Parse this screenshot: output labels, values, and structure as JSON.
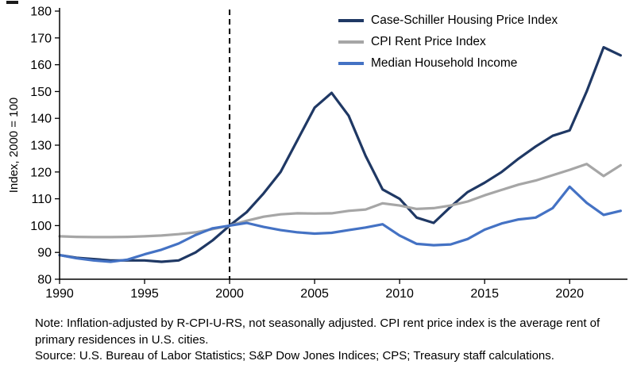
{
  "chart_data": {
    "type": "line",
    "title": "",
    "ylabel": "Index, 2000 = 100",
    "xlabel": "",
    "ylim": [
      80,
      180
    ],
    "ytick_step": 10,
    "xlim": [
      1990,
      2023.4
    ],
    "xticks": [
      1990,
      1995,
      2000,
      2005,
      2010,
      2015,
      2020
    ],
    "vline_x": 2000,
    "grid": false,
    "legend_position": "top-right-inside",
    "x": [
      1990,
      1991,
      1992,
      1993,
      1994,
      1995,
      1996,
      1997,
      1998,
      1999,
      2000,
      2001,
      2002,
      2003,
      2004,
      2005,
      2006,
      2007,
      2008,
      2009,
      2010,
      2011,
      2012,
      2013,
      2014,
      2015,
      2016,
      2017,
      2018,
      2019,
      2020,
      2021,
      2022,
      2023
    ],
    "series": [
      {
        "name": "Case-Schiller Housing Price Index",
        "color": "#1F3864",
        "values": [
          89,
          88,
          87.5,
          87,
          87,
          87,
          86.5,
          87,
          90,
          94.5,
          100,
          105,
          112,
          120,
          132,
          144,
          149.5,
          141,
          126,
          113.5,
          110,
          103,
          101,
          107,
          112.5,
          116,
          120,
          125,
          129.5,
          133.5,
          135.5,
          150,
          166.5,
          163.5
        ]
      },
      {
        "name": "CPI Rent Price Index",
        "color": "#A6A6A6",
        "values": [
          96,
          95.8,
          95.7,
          95.7,
          95.8,
          96,
          96.3,
          96.8,
          97.5,
          98.7,
          100,
          101.8,
          103.3,
          104.2,
          104.6,
          104.5,
          104.6,
          105.5,
          106,
          108.3,
          107.5,
          106.2,
          106.5,
          107.5,
          109,
          111.3,
          113.3,
          115.3,
          116.8,
          118.8,
          120.8,
          123,
          118.5,
          122.5
        ]
      },
      {
        "name": "Median Household Income",
        "color": "#4472C4",
        "values": [
          89,
          87.8,
          87,
          86.5,
          87.3,
          89.3,
          91,
          93.3,
          96.5,
          99,
          100,
          101,
          99.5,
          98.3,
          97.5,
          97,
          97.3,
          98.3,
          99.3,
          100.5,
          96.3,
          93.2,
          92.7,
          93,
          95,
          98.5,
          100.8,
          102.3,
          103,
          106.5,
          114.5,
          108.5,
          104,
          105.5
        ]
      }
    ]
  },
  "notes": {
    "note": "Note: Inflation-adjusted by R-CPI-U-RS, not seasonally adjusted. CPI rent price index is the average rent of primary residences in U.S. cities.",
    "source": "Source: U.S. Bureau of Labor Statistics; S&P Dow Jones Indices; CPS; Treasury staff calculations."
  }
}
